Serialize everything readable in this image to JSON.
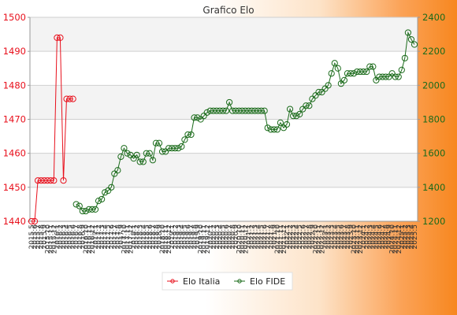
{
  "chart_data": {
    "type": "line",
    "title": "Grafico Elo",
    "x_tick_labels": [
      "2015.5",
      "2015.6",
      "2015.7",
      "2015.8",
      "2015.9",
      "2015.10",
      "2015.11",
      "2015.12",
      "2016.1",
      "2016.2",
      "2016.3",
      "2016.4",
      "2016.5",
      "2016.6",
      "2016.7",
      "2016.8",
      "2016.9",
      "2016.10",
      "2016.11",
      "2016.12",
      "2017.1",
      "2017.2",
      "2017.3",
      "2017.4",
      "2017.5",
      "2017.6",
      "2017.7",
      "2017.8",
      "2017.9",
      "2017.10",
      "2017.11",
      "2017.12",
      "2018.1",
      "2018.2",
      "2018.3",
      "2018.4",
      "2018.5",
      "2018.6",
      "2018.7",
      "2018.8",
      "2018.9",
      "2018.10",
      "2018.11",
      "2018.12",
      "2019.1",
      "2019.2",
      "2019.3",
      "2019.4",
      "2019.5",
      "2019.6",
      "2019.7",
      "2019.8",
      "2019.9",
      "2019.10",
      "2019.11",
      "2019.12",
      "2020.1",
      "2020.2",
      "2020.3",
      "2020.4",
      "2020.5",
      "2020.6",
      "2020.7",
      "2020.8",
      "2020.9",
      "2020.10",
      "2020.11",
      "2020.12",
      "2021.1",
      "2021.2",
      "2021.3",
      "2021.4",
      "2021.5",
      "2021.6",
      "2021.7",
      "2021.8",
      "2021.9",
      "2021.10",
      "2021.11",
      "2021.12",
      "2022.1",
      "2022.2",
      "2022.3",
      "2022.4",
      "2022.5",
      "2022.6",
      "2022.7",
      "2022.8",
      "2022.9",
      "2022.10",
      "2022.11",
      "2022.12",
      "2023.1",
      "2023.2",
      "2023.3",
      "2023.4",
      "2023.5",
      "2023.6",
      "2023.7",
      "2023.8",
      "2023.9",
      "2023.10",
      "2023.11",
      "2023.12",
      "2024.1",
      "2024.2",
      "2024.3",
      "2024.4",
      "2024.5",
      "2024.6",
      "2024.7",
      "2024.8",
      "2024.9",
      "2024.10",
      "2024.11",
      "2024.12",
      "2025.1",
      "2025.2",
      "2025.3",
      "2025.4",
      "2025.5"
    ],
    "y_left": {
      "min": 1440,
      "max": 1500,
      "ticks": [
        1440,
        1450,
        1460,
        1470,
        1480,
        1490,
        1500
      ]
    },
    "y_right": {
      "min": 1200,
      "max": 2400,
      "ticks": [
        1200,
        1400,
        1600,
        1800,
        2000,
        2200,
        2400
      ]
    },
    "grid": true,
    "legend_position": "bottom",
    "series": [
      {
        "name": "Elo Italia",
        "axis": "left",
        "color": "#e8101c",
        "values": [
          1440,
          1440,
          1452,
          1452,
          1452,
          1452,
          1452,
          1452,
          1494,
          1494,
          1452,
          1476,
          1476,
          1476,
          null,
          null,
          null,
          null,
          null,
          null,
          null,
          null,
          null,
          null,
          null,
          null,
          null,
          null,
          null,
          null,
          null,
          null,
          null,
          null,
          null,
          null,
          null,
          null,
          null,
          null,
          null,
          null,
          null,
          null,
          null,
          null,
          null,
          null,
          null,
          null,
          null,
          null,
          null,
          null,
          null,
          null,
          null,
          null,
          null,
          null,
          null,
          null,
          null,
          null,
          null,
          null,
          null,
          null,
          null,
          null,
          null,
          null,
          null,
          null,
          null,
          null,
          null,
          null,
          null,
          null,
          null,
          null,
          null,
          null,
          null,
          null,
          null,
          null,
          null,
          null,
          null,
          null,
          null,
          null,
          null,
          null,
          null,
          null,
          null,
          null,
          null,
          null,
          null,
          null,
          null,
          null,
          null,
          null,
          null,
          null,
          null,
          null,
          null,
          null,
          null,
          null,
          null,
          null,
          null,
          null,
          null
        ]
      },
      {
        "name": "Elo FIDE",
        "axis": "right",
        "color": "#1b6b1b",
        "values": [
          null,
          null,
          null,
          null,
          null,
          null,
          null,
          null,
          null,
          null,
          null,
          null,
          null,
          null,
          1300,
          1290,
          1260,
          1260,
          1270,
          1270,
          1270,
          1320,
          1330,
          1370,
          1380,
          1400,
          1480,
          1500,
          1580,
          1630,
          1600,
          1590,
          1570,
          1590,
          1550,
          1550,
          1600,
          1600,
          1560,
          1660,
          1660,
          1610,
          1610,
          1630,
          1630,
          1630,
          1630,
          1640,
          1680,
          1710,
          1710,
          1810,
          1810,
          1800,
          1820,
          1840,
          1850,
          1850,
          1850,
          1850,
          1850,
          1850,
          1900,
          1850,
          1850,
          1850,
          1850,
          1850,
          1850,
          1850,
          1850,
          1850,
          1850,
          1850,
          1750,
          1740,
          1740,
          1740,
          1780,
          1750,
          1770,
          1860,
          1820,
          1820,
          1830,
          1860,
          1880,
          1880,
          1920,
          1940,
          1960,
          1960,
          1980,
          2000,
          2070,
          2130,
          2100,
          2010,
          2030,
          2070,
          2070,
          2070,
          2080,
          2080,
          2080,
          2080,
          2110,
          2110,
          2030,
          2050,
          2050,
          2050,
          2050,
          2070,
          2050,
          2050,
          2090,
          2160,
          2310,
          2270,
          2240
        ]
      }
    ]
  }
}
